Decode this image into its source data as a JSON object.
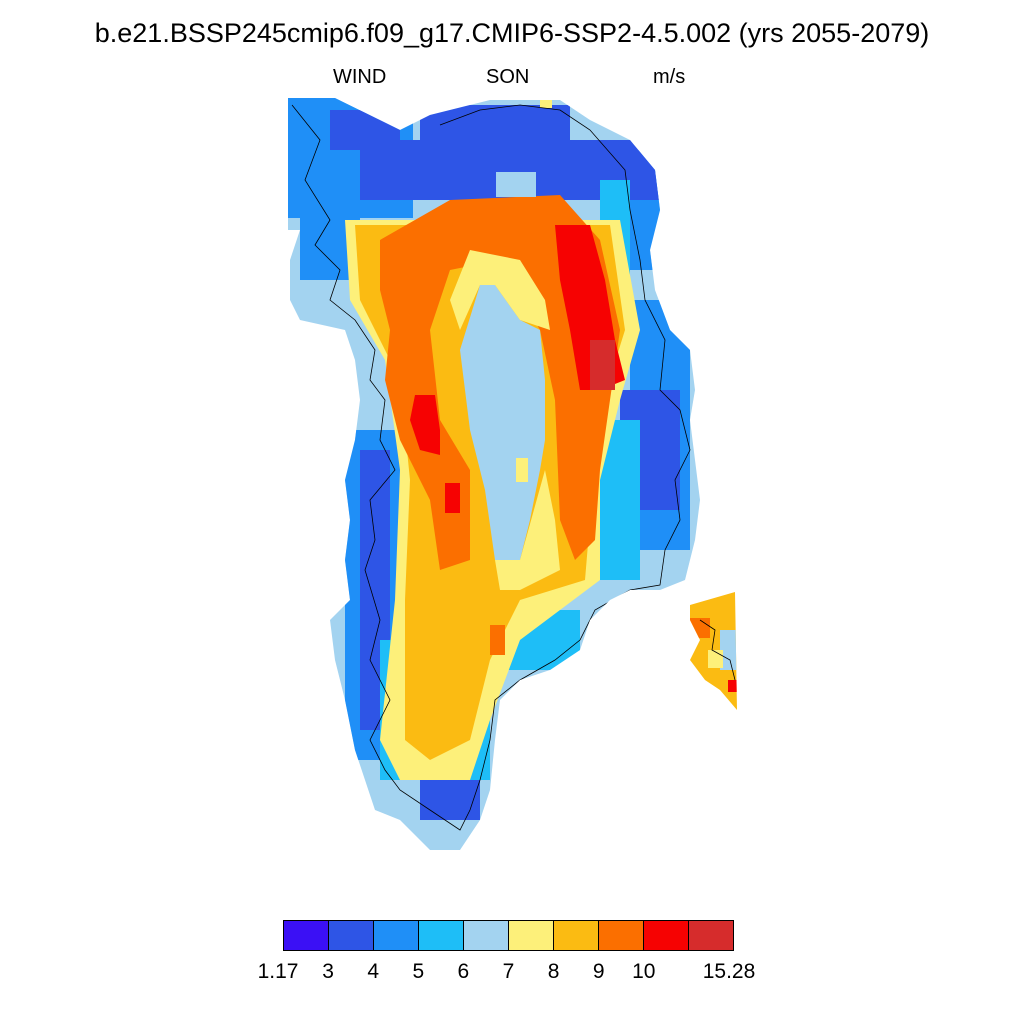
{
  "title": "b.e21.BSSP245cmip6.f09_g17.CMIP6-SSP2-4.5.002 (yrs 2055-2079)",
  "variable": "WIND",
  "season": "SON",
  "units": "m/s",
  "colors": {
    "c1": "#3b10f5",
    "c2": "#2e55e6",
    "c3": "#1f8ff7",
    "c4": "#1ebef7",
    "c5": "#a3d3f0",
    "c6": "#fdf07a",
    "c7": "#fbbb12",
    "c8": "#fb6f00",
    "c9": "#f60202",
    "c10": "#d62c2c"
  },
  "colorbar": {
    "colors": [
      "#3b10f5",
      "#2e55e6",
      "#1f8ff7",
      "#1ebef7",
      "#a3d3f0",
      "#fdf07a",
      "#fbbb12",
      "#fb6f00",
      "#f60202",
      "#d62c2c"
    ],
    "labels": [
      "1.17",
      "3",
      "4",
      "5",
      "6",
      "7",
      "8",
      "9",
      "10",
      "15.28"
    ]
  }
}
